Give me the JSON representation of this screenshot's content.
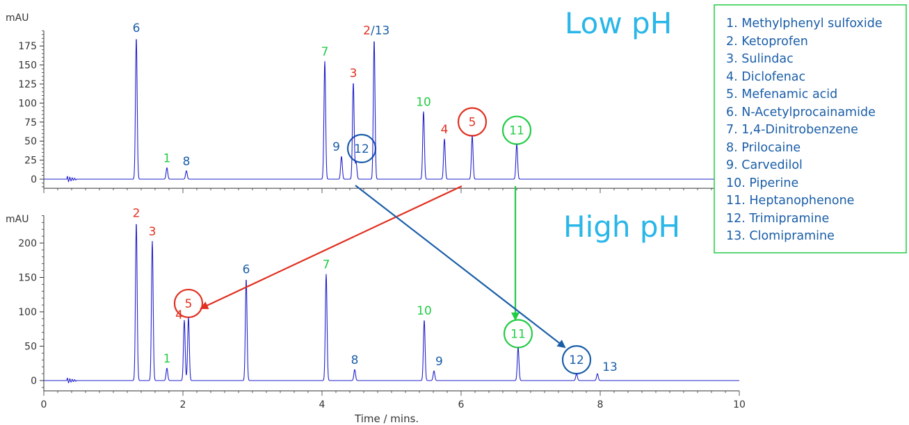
{
  "chart_data": [
    {
      "type": "line",
      "title": "Low pH",
      "ylabel": "mAU",
      "xlim": [
        0,
        10
      ],
      "ylim": [
        -12,
        195
      ],
      "yticks": [
        0,
        25,
        50,
        75,
        100,
        125,
        150,
        175
      ],
      "line_color": "#2222cc",
      "series": [
        {
          "peaks": [
            {
              "label": "6",
              "x": 1.33,
              "y": 186,
              "color": "#1a5ea8"
            },
            {
              "label": "1",
              "x": 1.77,
              "y": 15,
              "color": "#22cc44"
            },
            {
              "label": "8",
              "x": 2.05,
              "y": 11,
              "color": "#1a5ea8"
            },
            {
              "label": "7",
              "x": 4.04,
              "y": 155,
              "color": "#22cc44"
            },
            {
              "label": "9",
              "x": 4.28,
              "y": 30,
              "color": "#1a5ea8"
            },
            {
              "label": "3",
              "x": 4.45,
              "y": 127,
              "color": "#e03020"
            },
            {
              "label": "12",
              "x": 4.49,
              "y": 22,
              "color": "#1a5ea8",
              "circled": true
            },
            {
              "label": "2/13",
              "x": 4.75,
              "y": 183,
              "color": "#1a5ea8"
            },
            {
              "label": "10",
              "x": 5.46,
              "y": 89,
              "color": "#22cc44"
            },
            {
              "label": "4",
              "x": 5.76,
              "y": 53,
              "color": "#e03020"
            },
            {
              "label": "5",
              "x": 6.16,
              "y": 57,
              "color": "#e03020",
              "circled": true
            },
            {
              "label": "11",
              "x": 6.8,
              "y": 46,
              "color": "#22cc44",
              "circled": true
            }
          ]
        }
      ]
    },
    {
      "type": "line",
      "title": "High pH",
      "ylabel": "mAU",
      "xlabel": "Time / mins.",
      "xlim": [
        0,
        10
      ],
      "xticks": [
        0,
        2,
        4,
        6,
        8,
        10
      ],
      "ylim": [
        -15,
        240
      ],
      "yticks": [
        0,
        50,
        100,
        150,
        200
      ],
      "line_color": "#2222cc",
      "series": [
        {
          "peaks": [
            {
              "label": "2",
              "x": 1.33,
              "y": 230,
              "color": "#e03020"
            },
            {
              "label": "3",
              "x": 1.56,
              "y": 203,
              "color": "#e03020"
            },
            {
              "label": "1",
              "x": 1.77,
              "y": 18,
              "color": "#22cc44"
            },
            {
              "label": "4",
              "x": 2.02,
              "y": 88,
              "color": "#e03020"
            },
            {
              "label": "5",
              "x": 2.08,
              "y": 92,
              "color": "#e03020",
              "circled": true
            },
            {
              "label": "6",
              "x": 2.91,
              "y": 148,
              "color": "#1a5ea8"
            },
            {
              "label": "7",
              "x": 4.06,
              "y": 155,
              "color": "#22cc44"
            },
            {
              "label": "8",
              "x": 4.47,
              "y": 16,
              "color": "#1a5ea8"
            },
            {
              "label": "10",
              "x": 5.47,
              "y": 88,
              "color": "#22cc44"
            },
            {
              "label": "9",
              "x": 5.61,
              "y": 14,
              "color": "#1a5ea8"
            },
            {
              "label": "11",
              "x": 6.82,
              "y": 48,
              "color": "#22cc44",
              "circled": true
            },
            {
              "label": "12",
              "x": 7.66,
              "y": 10,
              "color": "#1a5ea8",
              "circled": true
            },
            {
              "label": "13",
              "x": 7.96,
              "y": 10,
              "color": "#1a5ea8"
            }
          ]
        }
      ]
    }
  ],
  "legend": {
    "border_color": "#22cc44",
    "items": [
      "1. Methylphenyl sulfoxide",
      "2. Ketoprofen",
      "3. Sulindac",
      "4. Diclofenac",
      "5. Mefenamic acid",
      "6. N-Acetylprocainamide",
      "7. 1,4-Dinitrobenzene",
      "8. Prilocaine",
      "9. Carvedilol",
      "10. Piperine",
      "11. Heptanophenone",
      "12. Trimipramine",
      "13. Clomipramine"
    ]
  },
  "arrows": [
    {
      "from_peak": "5",
      "from_panel": "Low pH",
      "to_panel": "High pH",
      "color": "#e03020"
    },
    {
      "from_peak": "11",
      "from_panel": "Low pH",
      "to_panel": "High pH",
      "color": "#22cc44"
    },
    {
      "from_peak": "12",
      "from_panel": "Low pH",
      "to_panel": "High pH",
      "color": "#1a5ea8"
    }
  ]
}
